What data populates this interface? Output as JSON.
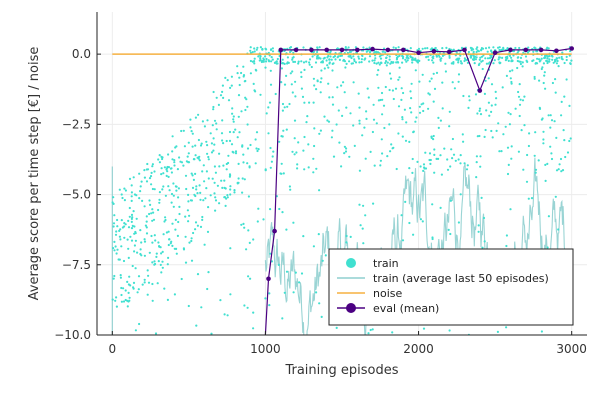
{
  "chart_data": {
    "type": "scatter",
    "xlabel": "Training episodes",
    "ylabel": "Average score per time step [€] / noise",
    "xlim": [
      -100,
      3100
    ],
    "ylim": [
      -10,
      1.5
    ],
    "grid": true,
    "legend_position": "bottom-right",
    "x_ticks": [
      0,
      1000,
      2000,
      3000
    ],
    "x_tick_labels": [
      "0",
      "1000",
      "2000",
      "3000"
    ],
    "y_ticks": [
      0,
      -2.5,
      -5,
      -7.5,
      -10
    ],
    "y_tick_labels": [
      "0.0",
      "−2.5",
      "−5.0",
      "−7.5",
      "−10.0"
    ],
    "series": [
      {
        "name": "train",
        "kind": "scatter",
        "color": "#40e0d0"
      },
      {
        "name": "train (average last 50 episodes)",
        "kind": "line",
        "color": "#8fcfcf"
      },
      {
        "name": "noise",
        "kind": "line",
        "color": "#f5b041",
        "values": [
          [
            0,
            0.0
          ],
          [
            3000,
            0.0
          ]
        ]
      },
      {
        "name": "eval (mean)",
        "kind": "line+markers",
        "color": "#4b0082",
        "x": [
          1000,
          1100,
          1200,
          1300,
          1400,
          1500,
          1600,
          1700,
          1800,
          1900,
          2000,
          2100,
          2200,
          2300,
          2400,
          2500,
          2600,
          2700,
          2800,
          2900,
          3000
        ],
        "y": [
          -10,
          0.15,
          0.15,
          0.15,
          0.15,
          0.15,
          0.15,
          0.18,
          0.15,
          0.15,
          0.05,
          0.1,
          0.08,
          0.15,
          -1.3,
          0.05,
          0.15,
          0.15,
          0.15,
          0.12,
          0.2
        ]
      }
    ],
    "eval_extra_points": [
      [
        1020,
        -8.0
      ],
      [
        1060,
        -6.3
      ]
    ]
  }
}
